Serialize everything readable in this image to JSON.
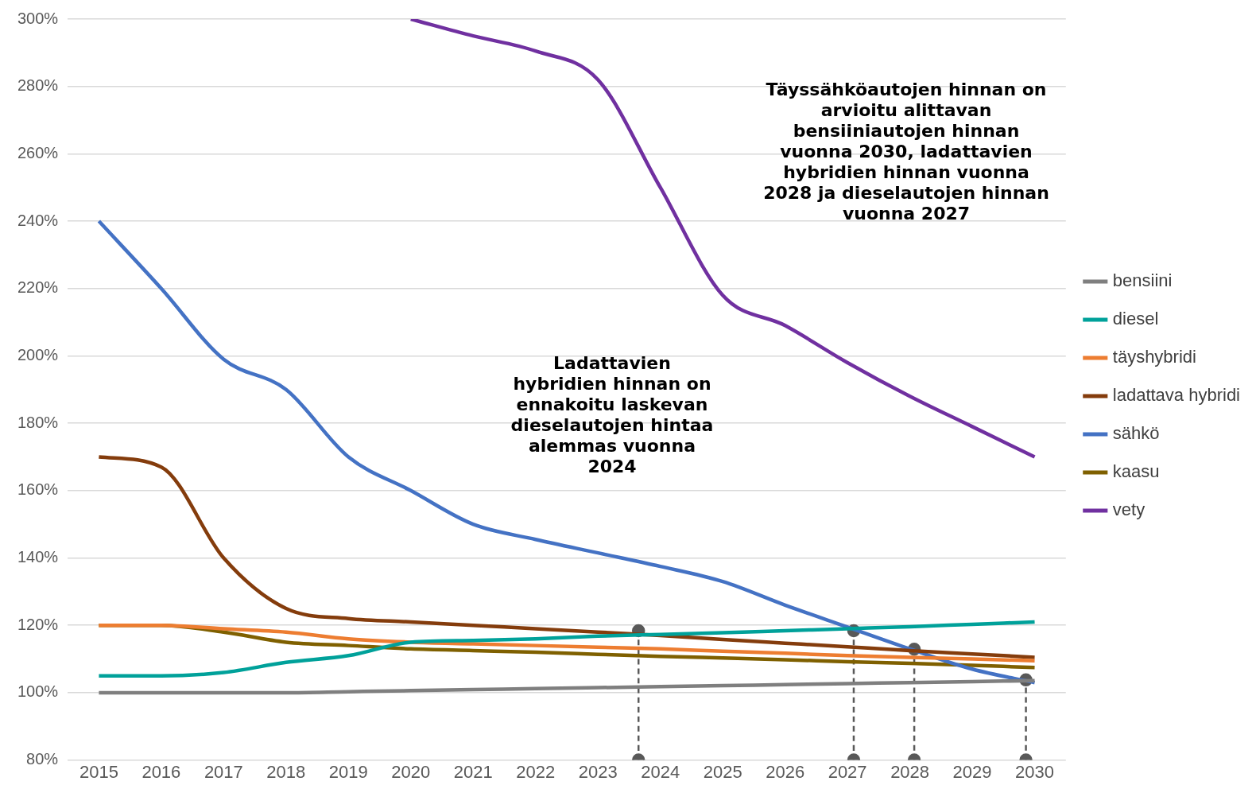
{
  "chart_data": {
    "type": "line",
    "x": [
      2015,
      2016,
      2017,
      2018,
      2019,
      2020,
      2021,
      2022,
      2023,
      2024,
      2025,
      2026,
      2027,
      2028,
      2029,
      2030
    ],
    "xlim": [
      2014.5,
      2030.5
    ],
    "xticks": [
      2015,
      2016,
      2017,
      2018,
      2019,
      2020,
      2021,
      2022,
      2023,
      2024,
      2025,
      2026,
      2027,
      2028,
      2029,
      2030
    ],
    "ylim": [
      80,
      300
    ],
    "yticks": [
      {
        "value": 80,
        "label": "80%"
      },
      {
        "value": 100,
        "label": "100%"
      },
      {
        "value": 120,
        "label": "120%"
      },
      {
        "value": 140,
        "label": "140%"
      },
      {
        "value": 160,
        "label": "160%"
      },
      {
        "value": 180,
        "label": "180%"
      },
      {
        "value": 200,
        "label": "200%"
      },
      {
        "value": 220,
        "label": "220%"
      },
      {
        "value": 240,
        "label": "240%"
      },
      {
        "value": 260,
        "label": "260%"
      },
      {
        "value": 280,
        "label": "280%"
      },
      {
        "value": 300,
        "label": "300%"
      }
    ],
    "grid": "y",
    "legend": "right",
    "series": [
      {
        "name": "bensiini",
        "color": "#7f7f7f",
        "values": [
          100,
          100,
          100,
          100,
          100.3,
          100.6,
          100.9,
          101.2,
          101.5,
          101.8,
          102.1,
          102.4,
          102.7,
          103,
          103.3,
          103.6
        ]
      },
      {
        "name": "diesel",
        "color": "#00a19a",
        "values": [
          105,
          105,
          106,
          109,
          111,
          115,
          115.5,
          116,
          116.8,
          117.3,
          117.8,
          118.4,
          119,
          119.6,
          120.3,
          121
        ]
      },
      {
        "name": "täyshybridi",
        "color": "#ed7d31",
        "values": [
          120,
          120,
          119,
          118,
          116,
          115,
          114.5,
          114,
          113.5,
          113,
          112.3,
          111.7,
          111,
          110.5,
          110,
          109.5
        ]
      },
      {
        "name": "ladattava hybridi",
        "color": "#843c0c",
        "values": [
          170,
          167,
          140,
          125,
          122,
          121,
          120,
          119,
          118,
          117,
          115.8,
          114.7,
          113.6,
          112.5,
          111.5,
          110.5
        ]
      },
      {
        "name": "sähkö",
        "color": "#4472c4",
        "values": [
          240,
          220,
          199,
          190,
          170,
          160,
          150,
          145.5,
          141.5,
          137.5,
          133,
          126,
          119.5,
          113,
          107,
          103
        ]
      },
      {
        "name": "kaasu",
        "color": "#7f6000",
        "values": [
          120,
          120,
          118,
          115,
          114,
          113,
          112.5,
          112,
          111.4,
          110.8,
          110.3,
          109.8,
          109.2,
          108.7,
          108.1,
          107.5
        ]
      },
      {
        "name": "vety",
        "color": "#7030a0",
        "values": [
          null,
          null,
          null,
          null,
          null,
          300,
          295,
          290.5,
          282,
          250,
          218,
          209,
          198,
          188,
          179,
          170
        ]
      },
      {
        "type": "line",
        "color": "#595959",
        "marker": "circle",
        "line_style": "dashed",
        "x": [
          2023.65,
          2023.65
        ],
        "values": [
          80,
          118.4
        ]
      },
      {
        "type": "line",
        "color": "#595959",
        "marker": "circle",
        "line_style": "dashed",
        "x": [
          2027.1,
          2027.1
        ],
        "values": [
          80,
          118.4
        ]
      },
      {
        "type": "line",
        "color": "#595959",
        "marker": "circle",
        "line_style": "dashed",
        "x": [
          2028.07,
          2028.07
        ],
        "values": [
          80,
          112.9
        ]
      },
      {
        "type": "line",
        "color": "#595959",
        "marker": "circle",
        "line_style": "dashed",
        "x": [
          2029.86,
          2029.86
        ],
        "values": [
          80,
          103.8
        ]
      }
    ],
    "annotations": [
      "Täyssähköautojen hinnan on arvioitu alittavan bensiiniautojen hinnan vuonna 2030, ladattavien hybridien hinnan vuonna 2028 ja dieselautojen hinnan vuonna 2027",
      "Ladattavien hybridien hinnan on ennakoitu laskevan dieselautojen hintaa alemmas vuonna 2024"
    ]
  }
}
